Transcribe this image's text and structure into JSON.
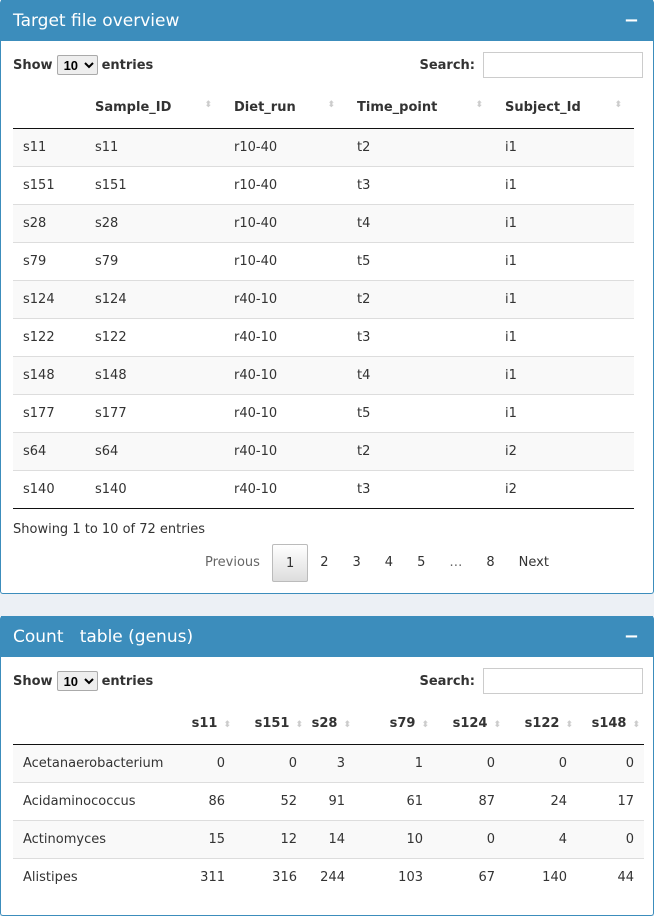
{
  "box1": {
    "title": "Target file overview",
    "collapse": "−",
    "show": "Show",
    "entries": "entries",
    "length": "10",
    "search_label": "Search:",
    "search_value": "",
    "columns": [
      "",
      "Sample_ID",
      "Diet_run",
      "Time_point",
      "Subject_Id"
    ],
    "rows": [
      [
        "s11",
        "s11",
        "r10-40",
        "t2",
        "i1"
      ],
      [
        "s151",
        "s151",
        "r10-40",
        "t3",
        "i1"
      ],
      [
        "s28",
        "s28",
        "r10-40",
        "t4",
        "i1"
      ],
      [
        "s79",
        "s79",
        "r10-40",
        "t5",
        "i1"
      ],
      [
        "s124",
        "s124",
        "r40-10",
        "t2",
        "i1"
      ],
      [
        "s122",
        "s122",
        "r40-10",
        "t3",
        "i1"
      ],
      [
        "s148",
        "s148",
        "r40-10",
        "t4",
        "i1"
      ],
      [
        "s177",
        "s177",
        "r40-10",
        "t5",
        "i1"
      ],
      [
        "s64",
        "s64",
        "r40-10",
        "t2",
        "i2"
      ],
      [
        "s140",
        "s140",
        "r40-10",
        "t3",
        "i2"
      ]
    ],
    "info": "Showing 1 to 10 of 72 entries",
    "pager": [
      "Previous",
      "1",
      "2",
      "3",
      "4",
      "5",
      "…",
      "8",
      "Next"
    ]
  },
  "box2": {
    "title": "Count   table (genus)",
    "collapse": "−",
    "show": "Show",
    "entries": "entries",
    "length": "10",
    "search_label": "Search:",
    "search_value": "",
    "columns": [
      "",
      "s11",
      "s151",
      "s28",
      "s79",
      "s124",
      "s122",
      "s148"
    ],
    "rows": [
      [
        "Acetanaerobacterium",
        "0",
        "0",
        "3",
        "1",
        "0",
        "0",
        "0"
      ],
      [
        "Acidaminococcus",
        "86",
        "52",
        "91",
        "61",
        "87",
        "24",
        "17"
      ],
      [
        "Actinomyces",
        "15",
        "12",
        "14",
        "10",
        "0",
        "4",
        "0"
      ],
      [
        "Alistipes",
        "311",
        "316",
        "244",
        "103",
        "67",
        "140",
        "44"
      ]
    ]
  }
}
